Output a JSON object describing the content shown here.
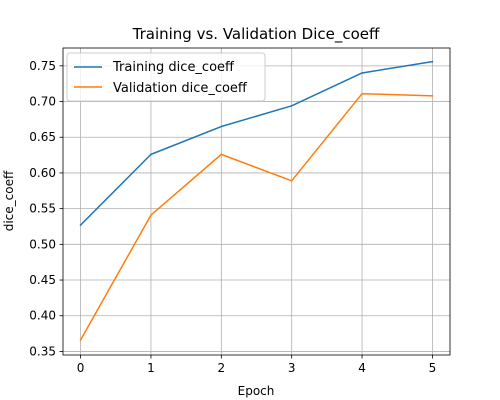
{
  "chart_data": {
    "type": "line",
    "title": "Training vs. Validation Dice_coeff",
    "xlabel": "Epoch",
    "ylabel": "dice_coeff",
    "x": [
      0,
      1,
      2,
      3,
      4,
      5
    ],
    "xticks": [
      "0",
      "1",
      "2",
      "3",
      "4",
      "5"
    ],
    "yticks": [
      "0.35",
      "0.40",
      "0.45",
      "0.50",
      "0.55",
      "0.60",
      "0.65",
      "0.70",
      "0.75"
    ],
    "xlim": [
      -0.25,
      5.25
    ],
    "ylim": [
      0.345,
      0.775
    ],
    "grid": true,
    "legend_position": "top-left",
    "series": [
      {
        "name": "Training dice_coeff",
        "color": "#1f77b4",
        "values": [
          0.527,
          0.626,
          0.665,
          0.694,
          0.74,
          0.756
        ]
      },
      {
        "name": "Validation dice_coeff",
        "color": "#ff7f0e",
        "values": [
          0.366,
          0.541,
          0.626,
          0.589,
          0.711,
          0.708
        ]
      }
    ]
  }
}
